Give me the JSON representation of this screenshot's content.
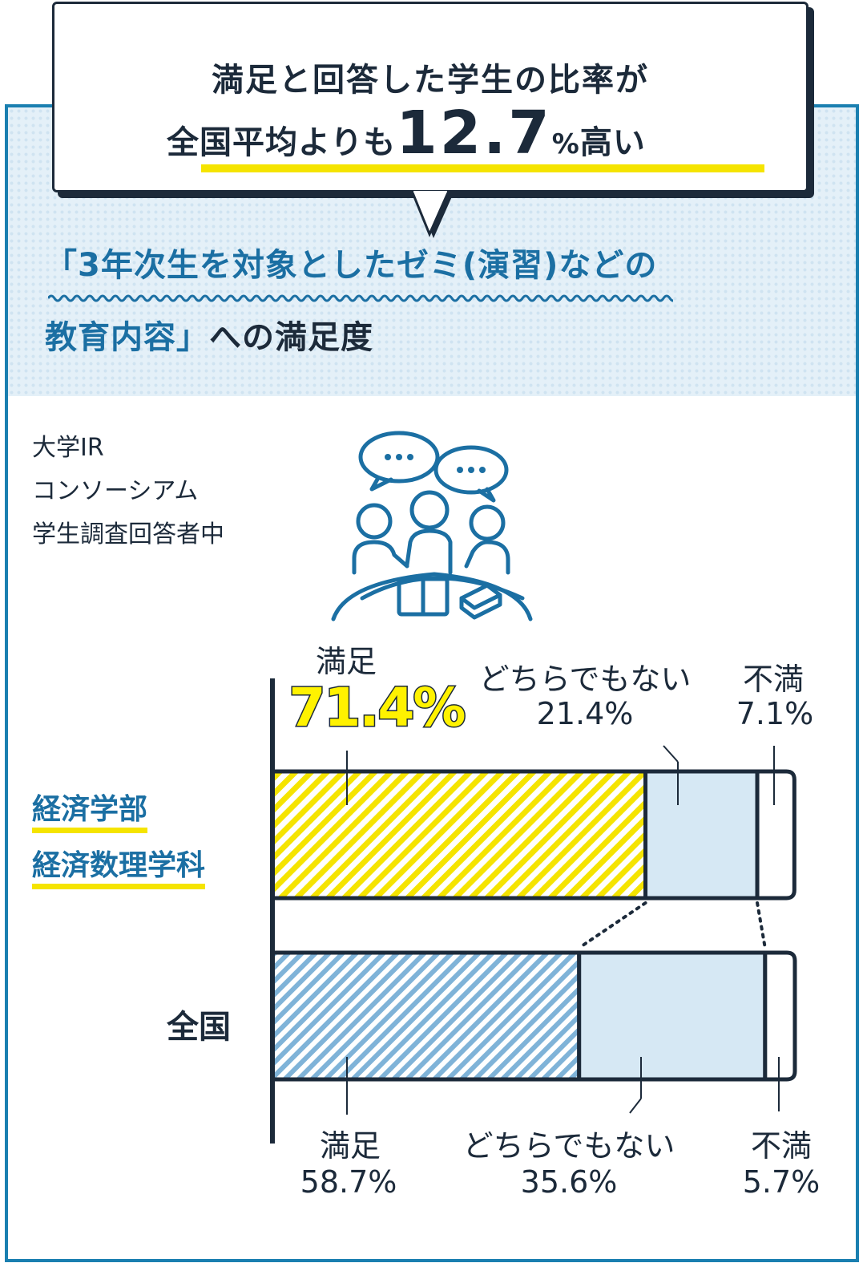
{
  "headline": {
    "line1": "満足と回答した学生の比率が",
    "line2_prefix": "全国平均よりも",
    "line2_number": "12.7",
    "line2_suffix_small": "%",
    "line2_suffix": "高い"
  },
  "topic": {
    "line1": "「3年次生を対象としたゼミ(演習)などの",
    "line2_quoted": "教育内容」",
    "line2_rest": "への満足度"
  },
  "source": {
    "line1": "大学IR",
    "line2": "コンソーシアム",
    "line3": "学生調査回答者中"
  },
  "rows": {
    "faculty_line1": "経済学部",
    "faculty_line2": "経済数理学科",
    "national": "全国"
  },
  "labels": {
    "top_satisfied": "満足",
    "top_satisfied_value": "71.4%",
    "top_neutral": "どちらでもない",
    "top_neutral_value": "21.4%",
    "top_unsatisfied": "不満",
    "top_unsatisfied_value": "7.1%",
    "bottom_satisfied": "満足",
    "bottom_satisfied_value": "58.7%",
    "bottom_neutral": "どちらでもない",
    "bottom_neutral_value": "35.6%",
    "bottom_unsatisfied": "不満",
    "bottom_unsatisfied_value": "5.7%"
  },
  "colors": {
    "satisfied_faculty": "#f5e400",
    "satisfied_national": "#7fb3d8",
    "neutral": "#d6e8f4",
    "unsatisfied": "#ffffff",
    "outline": "#1c2a3a",
    "accent_blue": "#1b6fa3"
  },
  "chart_data": {
    "type": "bar",
    "orientation": "horizontal-stacked",
    "categories": [
      "経済学部 経済数理学科",
      "全国"
    ],
    "series": [
      {
        "name": "満足",
        "values": [
          71.4,
          58.7
        ]
      },
      {
        "name": "どちらでもない",
        "values": [
          21.4,
          35.6
        ]
      },
      {
        "name": "不満",
        "values": [
          7.1,
          5.7
        ]
      }
    ],
    "xlim": [
      0,
      100
    ],
    "grid": false
  }
}
